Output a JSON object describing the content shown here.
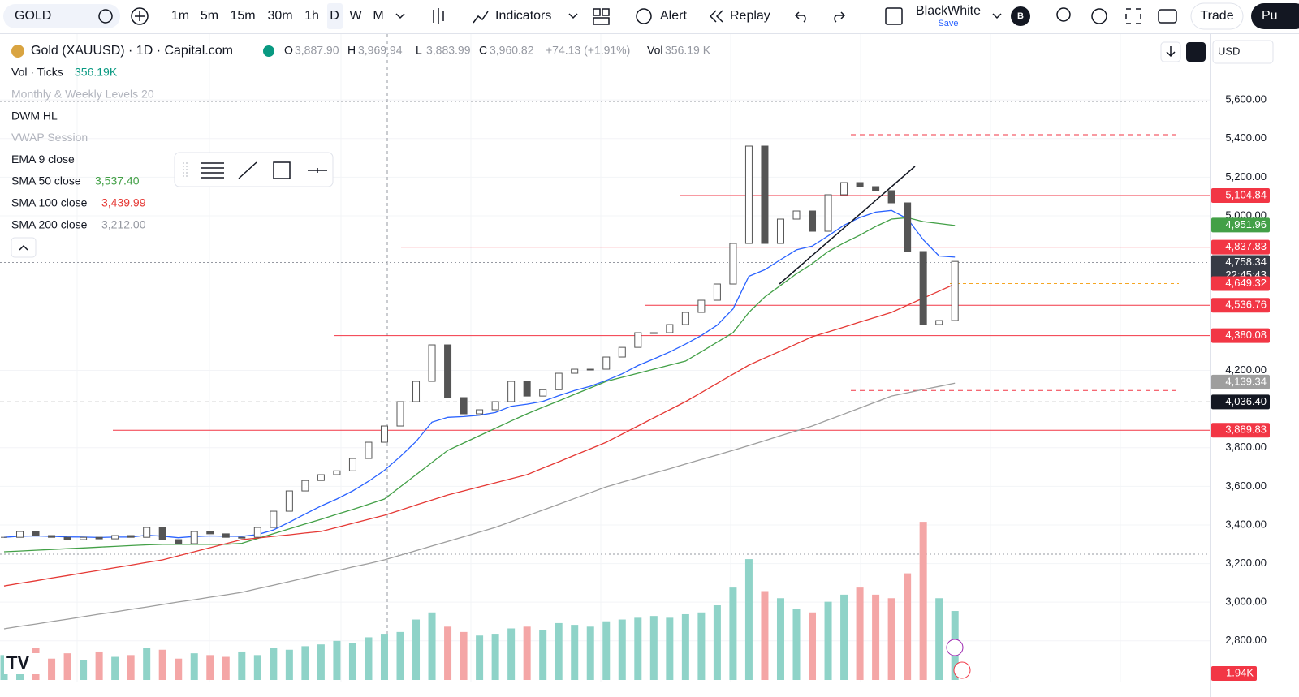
{
  "toolbar": {
    "symbol": "GOLD",
    "intervals": [
      "1m",
      "5m",
      "15m",
      "30m",
      "1h",
      "D",
      "W",
      "M"
    ],
    "indicators": "Indicators",
    "alert": "Alert",
    "replay": "Replay",
    "layout": "BlackWhite",
    "save": "Save",
    "avatar": "B",
    "trade": "Trade",
    "publish": "Pu"
  },
  "legend": {
    "title": "Gold (XAUUSD) · 1D · Capital.com",
    "ohlc": [
      {
        "key": "O",
        "value": "3,887.90"
      },
      {
        "key": "H",
        "value": "3,969.94"
      },
      {
        "key": "L",
        "value": "3,883.99"
      },
      {
        "key": "C",
        "value": "3,960.82"
      }
    ],
    "change": "+74.13 (+1.91%)",
    "vol_key": "Vol",
    "vol": "356.19 K"
  },
  "indicators": [
    {
      "name": "Vol · Ticks",
      "value": "356.19K"
    },
    {
      "name": "Monthly & Weekly Levels 20"
    },
    {
      "name": "DWM HL"
    },
    {
      "name": "VWAP Session"
    },
    {
      "name": "EMA 9 close"
    },
    {
      "name": "SMA 50 close",
      "value": "3,537.40"
    },
    {
      "name": "SMA 100 close",
      "value": "3,439.99"
    },
    {
      "name": "SMA 200 close",
      "value": "3,212.00"
    }
  ],
  "currency": "USD",
  "chart_data": {
    "type": "candlestick",
    "ylim": [
      2606,
      5928
    ],
    "yticks": [
      {
        "value": 5600,
        "label": "5,600.00"
      },
      {
        "value": 5400,
        "label": "5,400.00"
      },
      {
        "value": 5200,
        "label": "5,200.00"
      },
      {
        "value": 5000,
        "label": "5,000.00"
      },
      {
        "value": 4200,
        "label": "4,200.00"
      },
      {
        "value": 3800,
        "label": "3,800.00"
      },
      {
        "value": 3600,
        "label": "3,600.00"
      },
      {
        "value": 3400,
        "label": "3,400.00"
      },
      {
        "value": 3200,
        "label": "3,200.00"
      },
      {
        "value": 3000,
        "label": "3,000.00"
      },
      {
        "value": 2800,
        "label": "2,800.00"
      }
    ],
    "closes": [
      3336,
      3366,
      3345,
      3336,
      3324,
      3336,
      3328,
      3345,
      3336,
      3387,
      3324,
      3303,
      3366,
      3354,
      3336,
      3336,
      3387,
      3471,
      3576,
      3630,
      3660,
      3680,
      3744,
      3828,
      3912,
      4038,
      4143,
      4332,
      4059,
      3975,
      3996,
      4038,
      4143,
      4067,
      4100,
      4185,
      4206,
      4206,
      4269,
      4319,
      4395,
      4395,
      4437,
      4500,
      4563,
      4647,
      4857,
      5361,
      4857,
      4983,
      5025,
      4920,
      5109,
      5172,
      5151,
      5130,
      5067,
      4815,
      4437,
      4458,
      4764
    ],
    "moving_averages": [
      {
        "color": "#2962ff",
        "values": [
          3336,
          3342,
          3343,
          3341,
          3338,
          3337,
          3335,
          3337,
          3337,
          3347,
          3342,
          3334,
          3340,
          3343,
          3342,
          3341,
          3350,
          3374,
          3414,
          3457,
          3498,
          3534,
          3576,
          3626,
          3683,
          3754,
          3832,
          3932,
          3957,
          3961,
          3968,
          3982,
          4014,
          4025,
          4040,
          4069,
          4096,
          4118,
          4148,
          4182,
          4225,
          4259,
          4295,
          4336,
          4381,
          4434,
          4518,
          4687,
          4721,
          4773,
          4824,
          4843,
          4896,
          4951,
          4991,
          5019,
          5028,
          4985,
          4876,
          4792,
          4786
        ]
      },
      {
        "color": "#43a047",
        "values": [
          3261,
          3265,
          3269,
          3273,
          3277,
          3281,
          3285,
          3289,
          3293,
          3297,
          3300,
          3300,
          3300,
          3300,
          3300,
          3305,
          3330,
          3355,
          3380,
          3405,
          3429,
          3455,
          3480,
          3507,
          3534,
          3597,
          3660,
          3723,
          3786,
          3824,
          3862,
          3900,
          3938,
          3975,
          4009,
          4042,
          4076,
          4109,
          4143,
          4164,
          4185,
          4206,
          4227,
          4248,
          4297,
          4346,
          4395,
          4500,
          4580,
          4640,
          4700,
          4752,
          4815,
          4860,
          4900,
          4945,
          4983,
          4990,
          4970,
          4960,
          4950
        ]
      },
      {
        "color": "#e53935",
        "values": [
          3084,
          3098,
          3111,
          3125,
          3138,
          3152,
          3165,
          3179,
          3192,
          3206,
          3219,
          3240,
          3261,
          3282,
          3303,
          3324,
          3332,
          3341,
          3349,
          3358,
          3366,
          3387,
          3408,
          3429,
          3450,
          3476,
          3503,
          3529,
          3555,
          3576,
          3597,
          3618,
          3639,
          3660,
          3694,
          3727,
          3761,
          3794,
          3828,
          3870,
          3912,
          3954,
          3996,
          4038,
          4085,
          4133,
          4180,
          4227,
          4264,
          4300,
          4337,
          4374,
          4399,
          4424,
          4450,
          4475,
          4500,
          4537,
          4574,
          4610,
          4647
        ]
      },
      {
        "color": "#9e9e9e",
        "values": [
          2862,
          2875,
          2887,
          2900,
          2912,
          2925,
          2938,
          2950,
          2963,
          2975,
          2988,
          3001,
          3013,
          3026,
          3038,
          3051,
          3070,
          3088,
          3107,
          3126,
          3144,
          3163,
          3182,
          3200,
          3219,
          3243,
          3267,
          3291,
          3315,
          3339,
          3363,
          3387,
          3417,
          3447,
          3477,
          3507,
          3537,
          3567,
          3597,
          3621,
          3644,
          3668,
          3691,
          3715,
          3739,
          3762,
          3786,
          3811,
          3836,
          3862,
          3887,
          3912,
          3943,
          3974,
          4005,
          4036,
          4067,
          4084,
          4101,
          4117,
          4134
        ]
      }
    ],
    "volumes": [
      700,
      650,
      900,
      600,
      750,
      550,
      800,
      650,
      700,
      900,
      850,
      600,
      750,
      700,
      650,
      800,
      700,
      900,
      850,
      950,
      1000,
      1100,
      1050,
      1200,
      1300,
      1350,
      1700,
      1900,
      1500,
      1350,
      1250,
      1300,
      1450,
      1500,
      1400,
      1600,
      1550,
      1500,
      1650,
      1700,
      1750,
      1800,
      1750,
      1850,
      1900,
      2100,
      2600,
      3400,
      2500,
      2300,
      2000,
      1900,
      2200,
      2400,
      2600,
      2400,
      2300,
      3000,
      4450,
      2300,
      1940
    ],
    "volume_tag": {
      "value": 1940,
      "label": "1.94K"
    },
    "price_tags": [
      {
        "value": 5104.84,
        "label": "5,104.84",
        "color": "#f23645"
      },
      {
        "value": 4951.96,
        "label": "4,951.96",
        "color": "#43a047"
      },
      {
        "value": 4837.83,
        "label": "4,837.83",
        "color": "#f23645"
      },
      {
        "value": 4758.34,
        "label": "4,758.34",
        "color": "#363a45",
        "countdown": "22:45:43"
      },
      {
        "value": 4649.32,
        "label": "4,649.32",
        "color": "#f23645"
      },
      {
        "value": 4536.76,
        "label": "4,536.76",
        "color": "#f23645"
      },
      {
        "value": 4380.08,
        "label": "4,380.08",
        "color": "#f23645"
      },
      {
        "value": 4139.34,
        "label": "4,139.34",
        "color": "#9e9e9e"
      },
      {
        "value": 4036.4,
        "label": "4,036.40",
        "color": "#131722"
      },
      {
        "value": 3889.83,
        "label": "3,889.83",
        "color": "#f23645"
      }
    ],
    "dwm_levels": [
      5420,
      4096
    ]
  }
}
